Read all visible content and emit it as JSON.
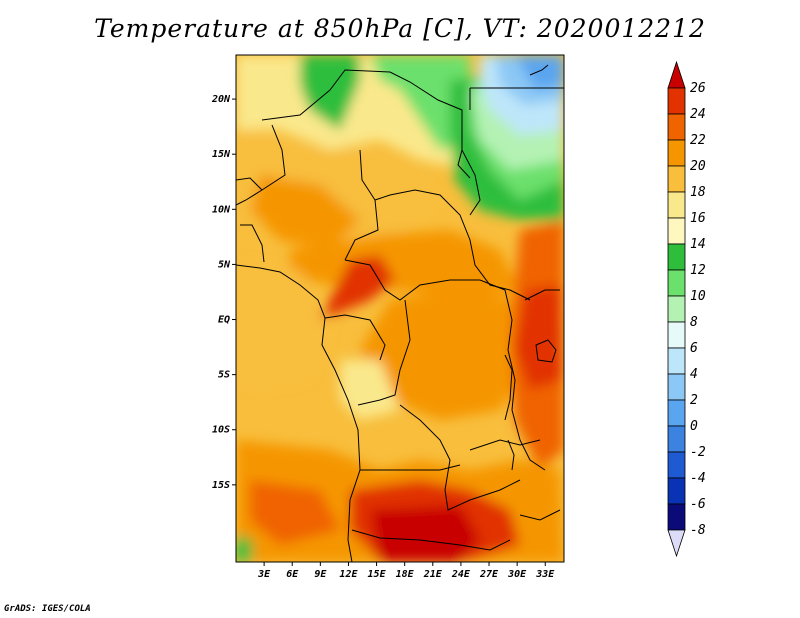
{
  "title": "Temperature at 850hPa [C], VT: 2020012212",
  "footer": "GrADS: IGES/COLA",
  "map": {
    "variable": "Temperature at 850hPa",
    "units": "C",
    "valid_time": "2020012212",
    "lon_range": [
      0,
      35
    ],
    "lat_range": [
      -22,
      24
    ],
    "lat_labels": [
      "20N",
      "15N",
      "10N",
      "5N",
      "EQ",
      "5S",
      "10S",
      "15S"
    ],
    "lat_values": [
      20,
      15,
      10,
      5,
      0,
      -5,
      -10,
      -15
    ],
    "lon_labels": [
      "3E",
      "6E",
      "9E",
      "12E",
      "15E",
      "18E",
      "21E",
      "24E",
      "27E",
      "30E",
      "33E"
    ],
    "lon_values": [
      3,
      6,
      9,
      12,
      15,
      18,
      21,
      24,
      27,
      30,
      33
    ]
  },
  "colorbar": {
    "labels": [
      "26",
      "24",
      "22",
      "20",
      "18",
      "16",
      "14",
      "12",
      "10",
      "8",
      "6",
      "4",
      "2",
      "0",
      "-2",
      "-4",
      "-6",
      "-8"
    ],
    "colors": [
      "#c80000",
      "#e13200",
      "#f06400",
      "#f59600",
      "#f8be3c",
      "#fae88c",
      "#fef8c0",
      "#2fbe3c",
      "#6ce06c",
      "#b4f2b4",
      "#e6fafa",
      "#bee6fa",
      "#8cc8f5",
      "#5aa5f0",
      "#3c82e1",
      "#1e5ad2",
      "#0a32b4",
      "#0a0a78",
      "#dcdcf8"
    ]
  }
}
